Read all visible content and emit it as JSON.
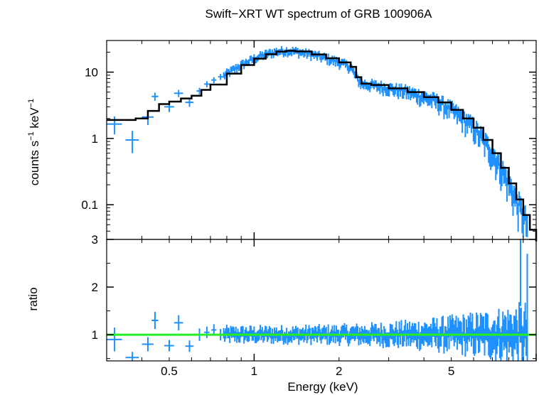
{
  "chart_data": [
    {
      "type": "scatter",
      "title": "Swift−XRT WT spectrum of GRB 100906A",
      "ylabel_parts": [
        "counts s",
        "−1",
        " keV",
        "−1"
      ],
      "xscale": "log",
      "yscale": "log",
      "xlim": [
        0.3,
        10
      ],
      "ylim": [
        0.03,
        30
      ],
      "yticks": [
        {
          "value": 10,
          "label": "10"
        },
        {
          "value": 1,
          "label": "1"
        },
        {
          "value": 0.1,
          "label": "0.1"
        }
      ],
      "data_color": "#1e90ff",
      "model_color": "#000000",
      "data": [
        {
          "x": 0.32,
          "y": 1.65,
          "xerr": 0.02,
          "yerr": 0.5
        },
        {
          "x": 0.37,
          "y": 0.95,
          "xerr": 0.02,
          "yerr": 0.35
        },
        {
          "x": 0.42,
          "y": 2.1,
          "xerr": 0.02,
          "yerr": 0.5
        },
        {
          "x": 0.445,
          "y": 4.3,
          "xerr": 0.012,
          "yerr": 0.6
        },
        {
          "x": 0.5,
          "y": 3.0,
          "xerr": 0.02,
          "yerr": 0.5
        },
        {
          "x": 0.54,
          "y": 4.8,
          "xerr": 0.02,
          "yerr": 0.6
        },
        {
          "x": 0.59,
          "y": 3.5,
          "xerr": 0.02,
          "yerr": 0.5
        },
        {
          "x": 0.64,
          "y": 5.2,
          "xerr": 0.015,
          "yerr": 0.6
        },
        {
          "x": 0.68,
          "y": 6.6,
          "xerr": 0.015,
          "yerr": 0.7
        },
        {
          "x": 0.72,
          "y": 7.6,
          "xerr": 0.015,
          "yerr": 0.8
        },
        {
          "x": 0.76,
          "y": 8.5,
          "xerr": 0.015,
          "yerr": 0.9
        }
      ],
      "dense_data": {
        "x_start": 0.78,
        "x_end": 9.3,
        "points": 300,
        "scatter": 0.1
      },
      "model": [
        [
          0.3,
          1.9
        ],
        [
          0.34,
          1.9
        ],
        [
          0.38,
          2.0
        ],
        [
          0.42,
          2.6
        ],
        [
          0.46,
          3.3
        ],
        [
          0.5,
          3.6
        ],
        [
          0.55,
          4.0
        ],
        [
          0.6,
          4.4
        ],
        [
          0.65,
          5.4
        ],
        [
          0.7,
          6.5
        ],
        [
          0.8,
          9.5
        ],
        [
          0.9,
          12.8
        ],
        [
          1.0,
          16.0
        ],
        [
          1.1,
          18.6
        ],
        [
          1.2,
          20.4
        ],
        [
          1.3,
          21.0
        ],
        [
          1.4,
          20.5
        ],
        [
          1.6,
          18.5
        ],
        [
          1.8,
          16.2
        ],
        [
          2.0,
          14.0
        ],
        [
          2.2,
          12.0
        ],
        [
          2.3,
          8.4
        ],
        [
          2.4,
          6.7
        ],
        [
          2.6,
          6.4
        ],
        [
          3.0,
          5.7
        ],
        [
          3.5,
          5.0
        ],
        [
          4.0,
          4.2
        ],
        [
          4.5,
          3.5
        ],
        [
          5.0,
          2.7
        ],
        [
          5.5,
          2.0
        ],
        [
          6.0,
          1.45
        ],
        [
          6.5,
          0.95
        ],
        [
          7.0,
          0.6
        ],
        [
          7.5,
          0.36
        ],
        [
          8.0,
          0.21
        ],
        [
          8.5,
          0.12
        ],
        [
          9.0,
          0.07
        ],
        [
          9.5,
          0.042
        ],
        [
          10.0,
          0.028
        ]
      ]
    },
    {
      "type": "scatter",
      "xlabel": "Energy (keV)",
      "ylabel": "ratio",
      "xscale": "log",
      "xlim": [
        0.3,
        10
      ],
      "ylim": [
        0.45,
        3.0
      ],
      "xticks": [
        {
          "value": 0.5,
          "label": "0.5"
        },
        {
          "value": 1,
          "label": "1"
        },
        {
          "value": 2,
          "label": "2"
        },
        {
          "value": 5,
          "label": "5"
        }
      ],
      "yticks": [
        {
          "value": 3,
          "label": "3"
        },
        {
          "value": 2,
          "label": "2"
        },
        {
          "value": 1,
          "label": "1"
        }
      ],
      "reference_line": 1.0,
      "reference_color": "#22ee22",
      "data_color": "#1e90ff",
      "data": [
        {
          "x": 0.32,
          "y": 0.9,
          "xerr": 0.02,
          "yerr": 0.25
        },
        {
          "x": 0.37,
          "y": 0.52,
          "xerr": 0.02,
          "yerr": 0.12
        },
        {
          "x": 0.42,
          "y": 0.8,
          "xerr": 0.02,
          "yerr": 0.15
        },
        {
          "x": 0.445,
          "y": 1.3,
          "xerr": 0.012,
          "yerr": 0.18
        },
        {
          "x": 0.5,
          "y": 0.77,
          "xerr": 0.02,
          "yerr": 0.12
        },
        {
          "x": 0.54,
          "y": 1.25,
          "xerr": 0.02,
          "yerr": 0.16
        },
        {
          "x": 0.59,
          "y": 0.76,
          "xerr": 0.02,
          "yerr": 0.12
        },
        {
          "x": 0.64,
          "y": 1.0,
          "xerr": 0.015,
          "yerr": 0.13
        },
        {
          "x": 0.68,
          "y": 1.05,
          "xerr": 0.015,
          "yerr": 0.12
        },
        {
          "x": 0.72,
          "y": 1.1,
          "xerr": 0.015,
          "yerr": 0.12
        },
        {
          "x": 0.76,
          "y": 1.0,
          "xerr": 0.015,
          "yerr": 0.12
        },
        {
          "x": 8.8,
          "y": 2.3,
          "xerr": 0.05,
          "yerr": 0.7
        },
        {
          "x": 9.3,
          "y": 1.5,
          "xerr": 0.05,
          "yerr": 1.2
        }
      ],
      "dense_data": {
        "x_start": 0.78,
        "x_end": 9.3,
        "points": 300,
        "scatter": 0.1
      }
    }
  ]
}
